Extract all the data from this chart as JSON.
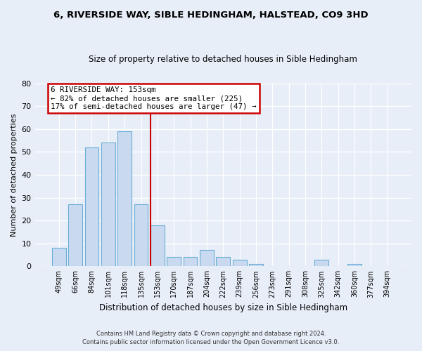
{
  "title": "6, RIVERSIDE WAY, SIBLE HEDINGHAM, HALSTEAD, CO9 3HD",
  "subtitle": "Size of property relative to detached houses in Sible Hedingham",
  "xlabel": "Distribution of detached houses by size in Sible Hedingham",
  "ylabel": "Number of detached properties",
  "bar_labels": [
    "49sqm",
    "66sqm",
    "84sqm",
    "101sqm",
    "118sqm",
    "135sqm",
    "153sqm",
    "170sqm",
    "187sqm",
    "204sqm",
    "222sqm",
    "239sqm",
    "256sqm",
    "273sqm",
    "291sqm",
    "308sqm",
    "325sqm",
    "342sqm",
    "360sqm",
    "377sqm",
    "394sqm"
  ],
  "bar_values": [
    8,
    27,
    52,
    54,
    59,
    27,
    18,
    4,
    4,
    7,
    4,
    3,
    1,
    0,
    0,
    0,
    3,
    0,
    1,
    0,
    0
  ],
  "bar_color": "#c9daf0",
  "bar_edge_color": "#6aaed6",
  "highlight_index": 6,
  "highlight_line_color": "#cc0000",
  "ylim": [
    0,
    80
  ],
  "yticks": [
    0,
    10,
    20,
    30,
    40,
    50,
    60,
    70,
    80
  ],
  "annotation_title": "6 RIVERSIDE WAY: 153sqm",
  "annotation_line1": "← 82% of detached houses are smaller (225)",
  "annotation_line2": "17% of semi-detached houses are larger (47) →",
  "annotation_box_color": "#ffffff",
  "annotation_box_edge": "#cc0000",
  "footer_line1": "Contains HM Land Registry data © Crown copyright and database right 2024.",
  "footer_line2": "Contains public sector information licensed under the Open Government Licence v3.0.",
  "bg_color": "#e8eef8",
  "plot_bg_color": "#e8eef8"
}
